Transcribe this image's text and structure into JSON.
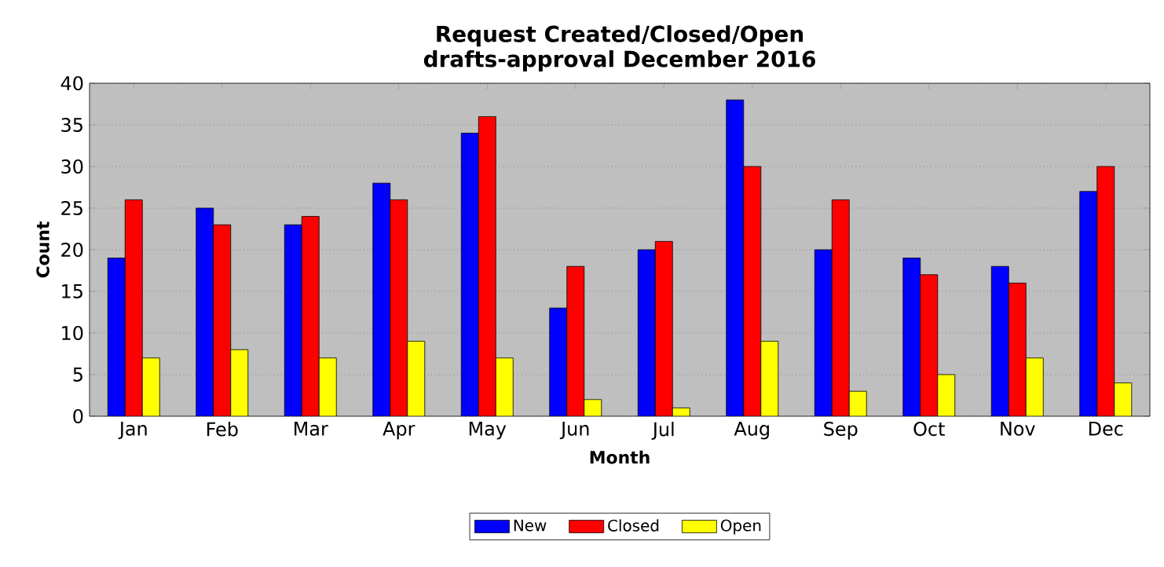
{
  "chart_data": {
    "type": "bar",
    "title": "Request Created/Closed/Open\ndrafts-approval December 2016",
    "xlabel": "Month",
    "ylabel": "Count",
    "categories": [
      "Jan",
      "Feb",
      "Mar",
      "Apr",
      "May",
      "Jun",
      "Jul",
      "Aug",
      "Sep",
      "Oct",
      "Nov",
      "Dec"
    ],
    "series": [
      {
        "name": "New",
        "color": "#0000ff",
        "values": [
          19,
          25,
          23,
          28,
          34,
          13,
          20,
          38,
          20,
          19,
          18,
          27
        ]
      },
      {
        "name": "Closed",
        "color": "#ff0000",
        "values": [
          26,
          23,
          24,
          26,
          36,
          18,
          21,
          30,
          26,
          17,
          16,
          30
        ]
      },
      {
        "name": "Open",
        "color": "#ffff00",
        "values": [
          7,
          8,
          7,
          9,
          7,
          2,
          1,
          9,
          3,
          5,
          7,
          4
        ]
      }
    ],
    "ylim": [
      0,
      40
    ],
    "yticks": [
      0,
      5,
      10,
      15,
      20,
      25,
      30,
      35,
      40
    ],
    "grid": "y",
    "legend": "bottom"
  }
}
